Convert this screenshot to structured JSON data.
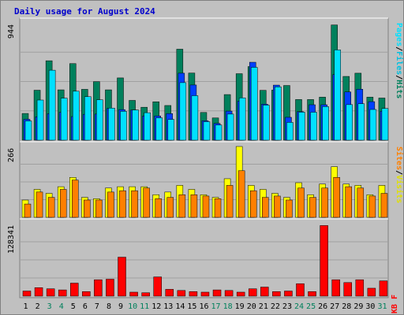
{
  "chart_data": {
    "type": "bar",
    "title": "Daily usage for August 2024",
    "categories": [
      "1",
      "2",
      "3",
      "4",
      "5",
      "6",
      "7",
      "8",
      "9",
      "10",
      "11",
      "12",
      "13",
      "14",
      "15",
      "16",
      "17",
      "18",
      "19",
      "20",
      "21",
      "22",
      "23",
      "24",
      "25",
      "26",
      "27",
      "28",
      "29",
      "30",
      "31"
    ],
    "weekend_days": [
      "3",
      "4",
      "10",
      "11",
      "17",
      "18",
      "24",
      "25",
      "31"
    ],
    "panels": [
      {
        "id": "top",
        "ytick": "944",
        "ylim": [
          0,
          944
        ],
        "side_label": [
          "Pages",
          "/",
          "Files",
          "/",
          "Hits"
        ],
        "series": [
          {
            "name": "Hits",
            "values": [
              215,
              402,
              639,
              405,
              616,
              409,
              471,
              405,
              501,
              320,
              265,
              309,
              279,
              732,
              540,
              223,
              179,
              367,
              535,
              592,
              401,
              403,
              440,
              327,
              327,
              346,
              927,
              513,
              539,
              346,
              339
            ]
          },
          {
            "name": "Files",
            "values": [
              168,
              188,
              213,
              224,
              190,
              208,
              210,
              255,
              246,
              243,
              195,
              195,
              214,
              539,
              444,
              156,
              135,
              234,
              314,
              627,
              290,
              443,
              184,
              230,
              285,
              285,
              528,
              388,
              410,
              310,
              233
            ]
          },
          {
            "name": "Pages",
            "values": [
              155,
              323,
              563,
              338,
              394,
              350,
              325,
              258,
              232,
              243,
              221,
              180,
              167,
              463,
              358,
              149,
              122,
              210,
              340,
              586,
              282,
              429,
              143,
              225,
              225,
              270,
              726,
              286,
              293,
              247,
              255
            ]
          }
        ]
      },
      {
        "id": "middle",
        "ytick": "266",
        "ylim": [
          0,
          266
        ],
        "side_label": [
          "Sites",
          "/",
          "Visits"
        ],
        "series": [
          {
            "name": "Visits",
            "values": [
              65,
              105,
              90,
              115,
              150,
              75,
              70,
              110,
              115,
              115,
              115,
              85,
              95,
              120,
              105,
              85,
              75,
              145,
              266,
              120,
              105,
              90,
              75,
              130,
              85,
              125,
              190,
              125,
              120,
              85,
              120
            ]
          },
          {
            "name": "Sites",
            "values": [
              50,
              95,
              75,
              105,
              140,
              65,
              65,
              95,
              100,
              100,
              110,
              70,
              75,
              85,
              85,
              80,
              70,
              120,
              175,
              100,
              75,
              80,
              65,
              110,
              75,
              110,
              150,
              115,
              110,
              80,
              90
            ]
          }
        ]
      },
      {
        "id": "bottom",
        "ytick": "128341",
        "ylim": [
          0,
          128341
        ],
        "side_label": [
          "KB F"
        ],
        "series": [
          {
            "name": "KB F",
            "values": [
              9000,
              15000,
              13000,
              11000,
              23000,
              8000,
              29000,
              30000,
              69000,
              7000,
              6000,
              34000,
              12000,
              10000,
              8000,
              7000,
              11000,
              10000,
              7000,
              13000,
              16000,
              8000,
              9000,
              22000,
              8000,
              125000,
              29000,
              24000,
              29000,
              14000,
              27000
            ]
          }
        ]
      }
    ]
  },
  "colors": {
    "background": "#c0c0c0",
    "plot_bg": "#c0c0c0",
    "title": "#0000cc",
    "hits": "#00805c",
    "files": "#0040ff",
    "pages": "#00e0ff",
    "visits": "#ffff00",
    "sites": "#ff8000",
    "kbytes": "#ff0000",
    "weekday_label": "#000000",
    "weekend_label": "#00805c"
  }
}
